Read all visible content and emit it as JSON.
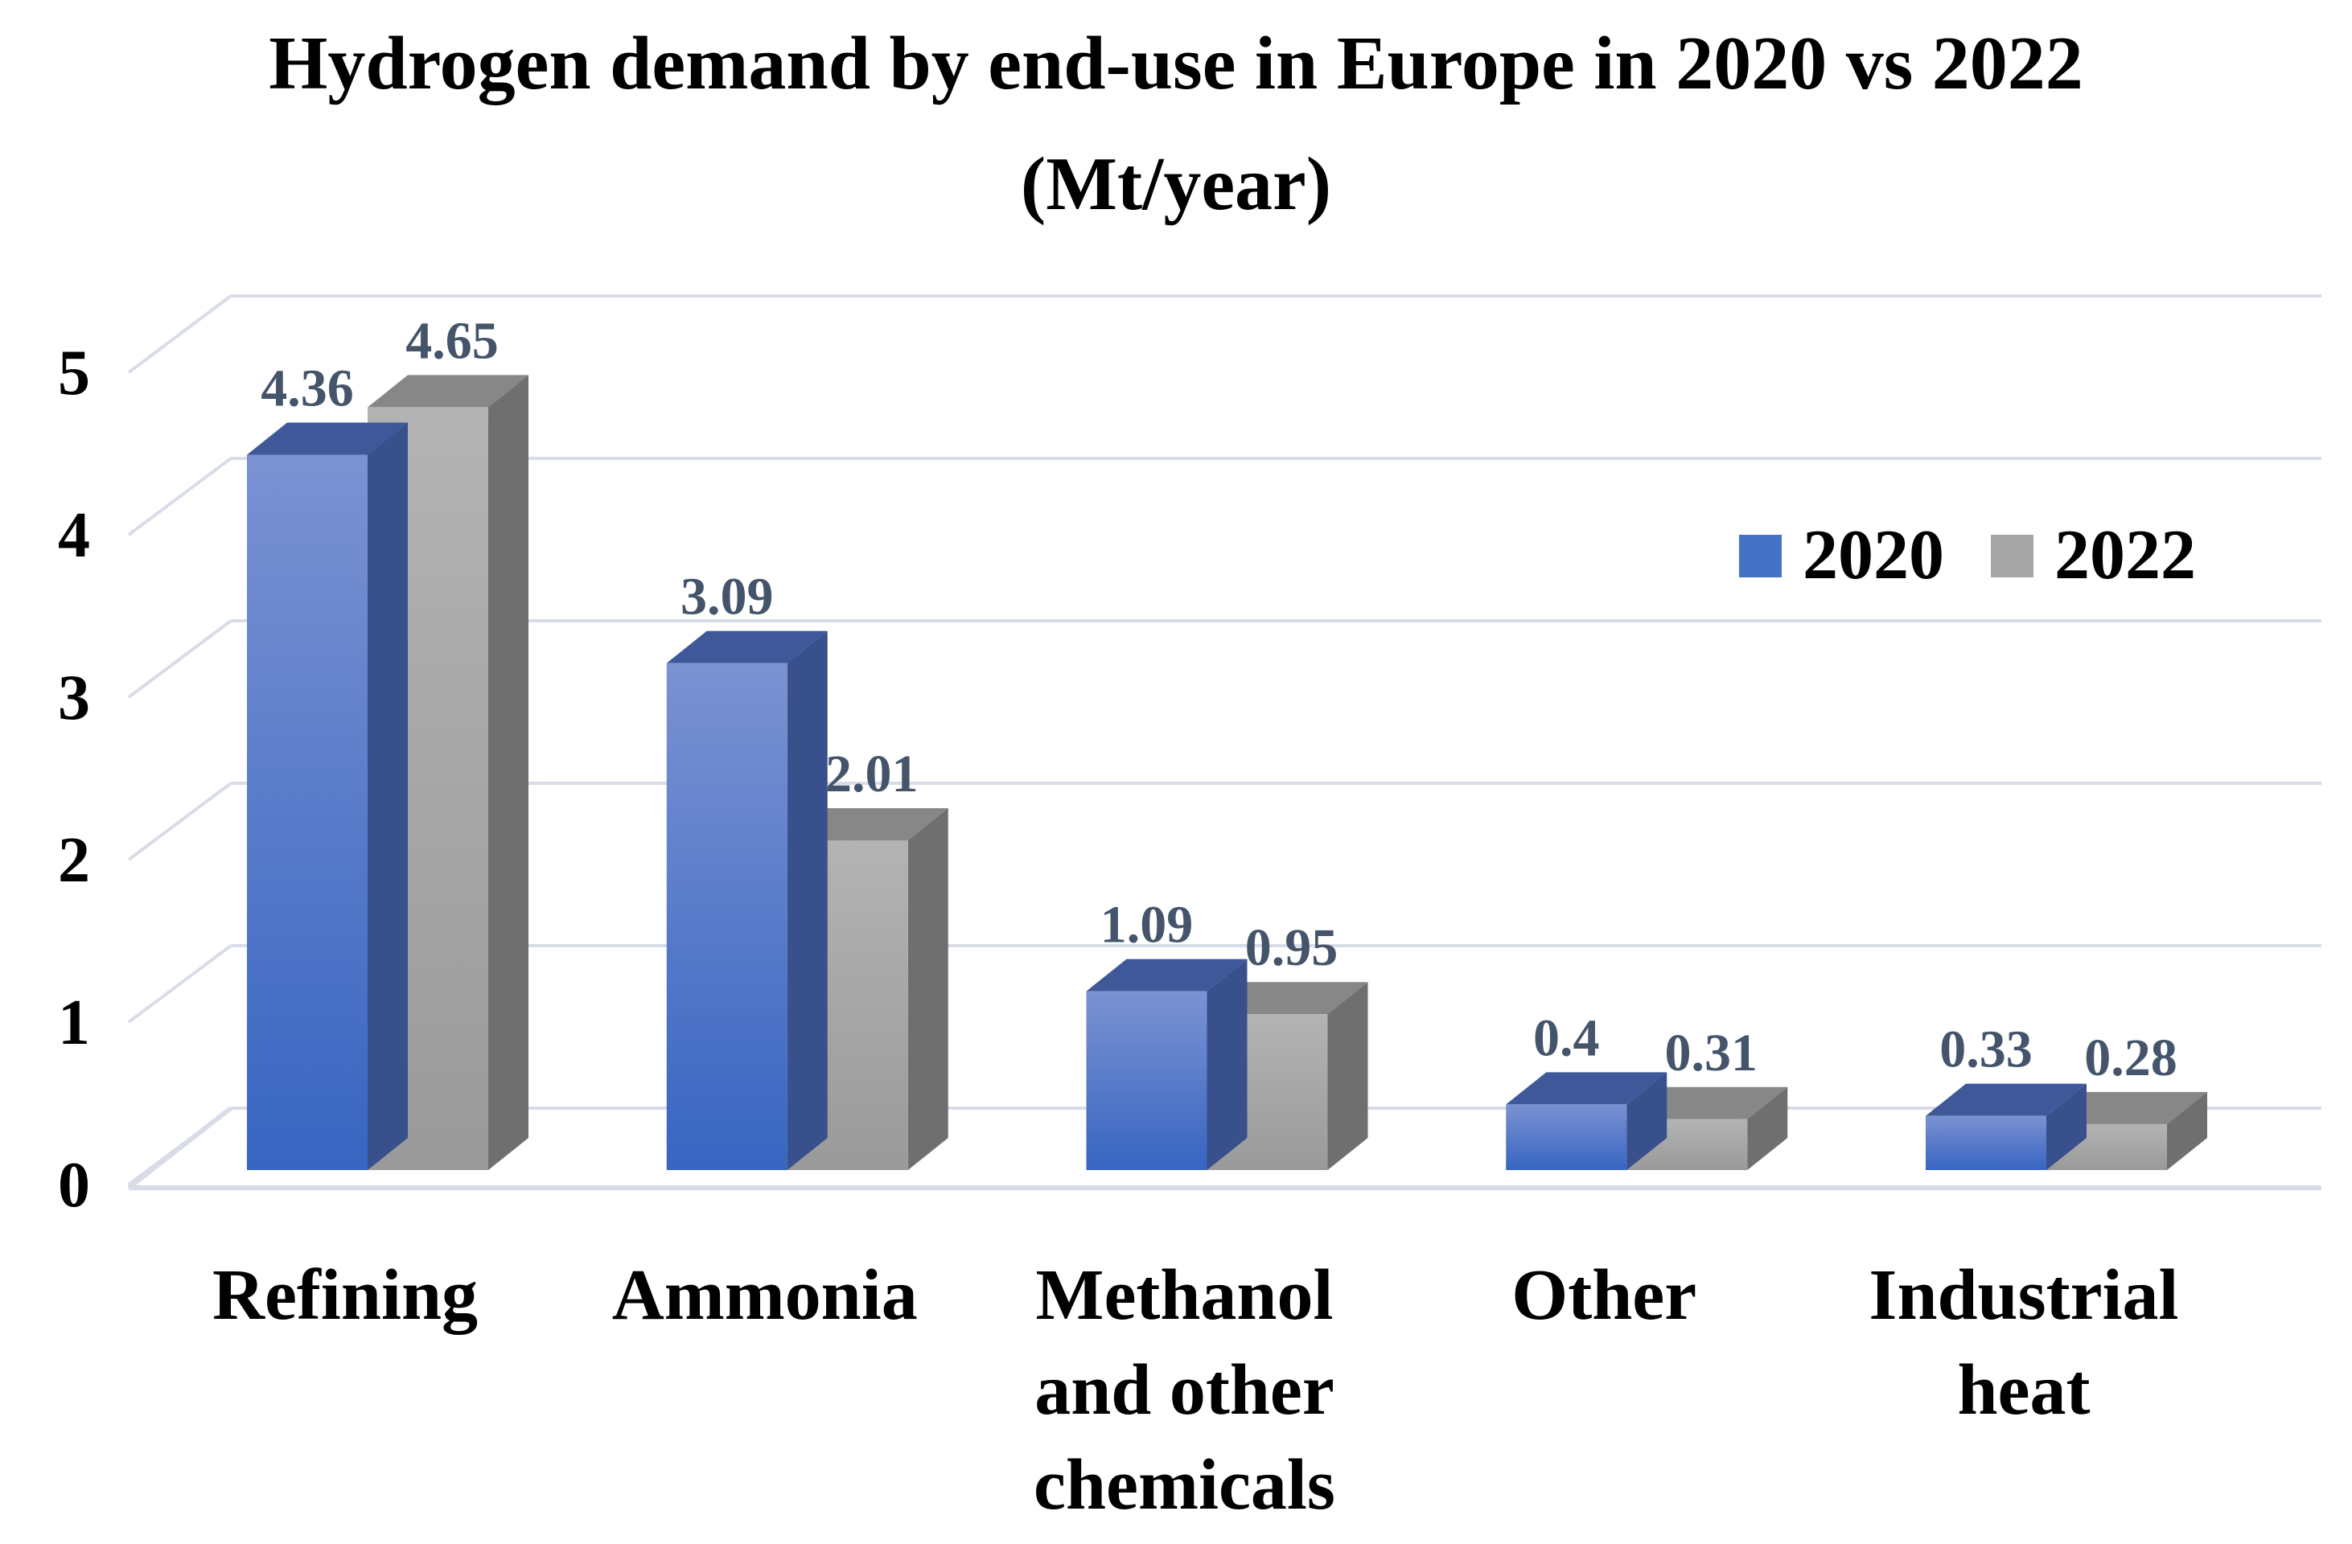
{
  "header": {
    "line1": "Hydrogen demand by end-use in Europe in 2020 vs 2022",
    "line2": "(Mt/year)"
  },
  "legend": {
    "items": [
      {
        "label": "2020",
        "color": "#4472C4"
      },
      {
        "label": "2022",
        "color": "#A6A6A6"
      }
    ]
  },
  "chart_data": {
    "type": "bar",
    "effect": "3d",
    "title": "Hydrogen demand by end-use in Europe in 2020 vs 2022 (Mt/year)",
    "categories": [
      "Refining",
      "Ammonia",
      "Methanol and other chemicals",
      "Other",
      "Industrial heat"
    ],
    "categories_display": [
      "Refining",
      "Ammonia",
      "Methanol\nand other\nchemicals",
      "Other",
      "Industrial\nheat"
    ],
    "series": [
      {
        "name": "2020",
        "color": "#4472C4",
        "values": [
          4.36,
          3.09,
          1.09,
          0.4,
          0.33
        ]
      },
      {
        "name": "2022",
        "color": "#A6A6A6",
        "values": [
          4.65,
          2.01,
          0.95,
          0.31,
          0.28
        ]
      }
    ],
    "value_labels": [
      [
        "4.36",
        "3.09",
        "1.09",
        "0.4",
        "0.33"
      ],
      [
        "4.65",
        "2.01",
        "0.95",
        "0.31",
        "0.28"
      ]
    ],
    "xlabel": "",
    "ylabel": "",
    "ylim": [
      0,
      5
    ],
    "yticks": [
      "0",
      "1",
      "2",
      "3",
      "4",
      "5"
    ],
    "grid": true,
    "gridline_color": "#D8DCE8",
    "value_label_color": "#44546A",
    "legend_position": "upper-right"
  }
}
